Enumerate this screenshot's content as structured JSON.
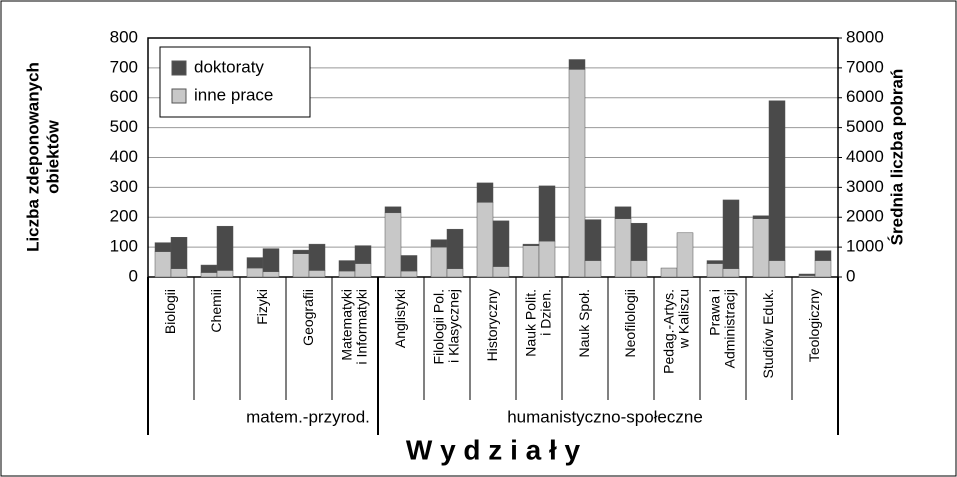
{
  "chart_data": {
    "type": "paired-stacked-bar",
    "ylabel": [
      "Liczba zdeponowanych",
      "obiektów"
    ],
    "y2label": "Średnia liczba pobrań",
    "xlabel": "W y d z i a ł y",
    "categories": [
      [
        "Biologii"
      ],
      [
        "Chemii"
      ],
      [
        "Fizyki"
      ],
      [
        "Geografii"
      ],
      [
        "Matematyki",
        "i Informatyki"
      ],
      [
        "Anglistyki"
      ],
      [
        "Filologii Pol.",
        "i Klasycznej"
      ],
      [
        "Historyczny"
      ],
      [
        "Nauk Polit.",
        "i Dzien."
      ],
      [
        "Nauk Społ."
      ],
      [
        "Neofilologii"
      ],
      [
        "Pedag.-Artys.",
        "w Kaliszu"
      ],
      [
        "Prawa i",
        "Administracji"
      ],
      [
        "Studiów Eduk."
      ],
      [
        "Teologiczny"
      ]
    ],
    "groups": [
      {
        "label": "matem.-przyrod.",
        "count": 5
      },
      {
        "label": "humanistyczno-społeczne",
        "count": 10
      }
    ],
    "series": [
      {
        "name": "inne prace",
        "color": "#c8c8c8",
        "values": [
          85,
          15,
          30,
          78,
          20,
          215,
          100,
          250,
          105,
          695,
          195,
          30,
          45,
          195,
          5
        ],
        "values_y2": [
          280,
          220,
          180,
          220,
          450,
          200,
          280,
          350,
          1200,
          550,
          550,
          1480,
          280,
          550,
          550
        ]
      },
      {
        "name": "doktoraty",
        "color": "#4a4a4a",
        "values": [
          30,
          25,
          35,
          12,
          35,
          20,
          25,
          65,
          5,
          33,
          40,
          0,
          10,
          10,
          5
        ],
        "values_y2": [
          1050,
          1480,
          770,
          880,
          600,
          520,
          1320,
          1530,
          1850,
          1370,
          1250,
          0,
          2300,
          5350,
          330
        ]
      }
    ],
    "legend_order": [
      1,
      0
    ],
    "ylim": [
      0,
      800
    ],
    "yticks": [
      0,
      100,
      200,
      300,
      400,
      500,
      600,
      700,
      800
    ],
    "y2lim": [
      0,
      8000
    ],
    "y2ticks": [
      0,
      1000,
      2000,
      3000,
      4000,
      5000,
      6000,
      7000,
      8000
    ],
    "grid": true
  }
}
